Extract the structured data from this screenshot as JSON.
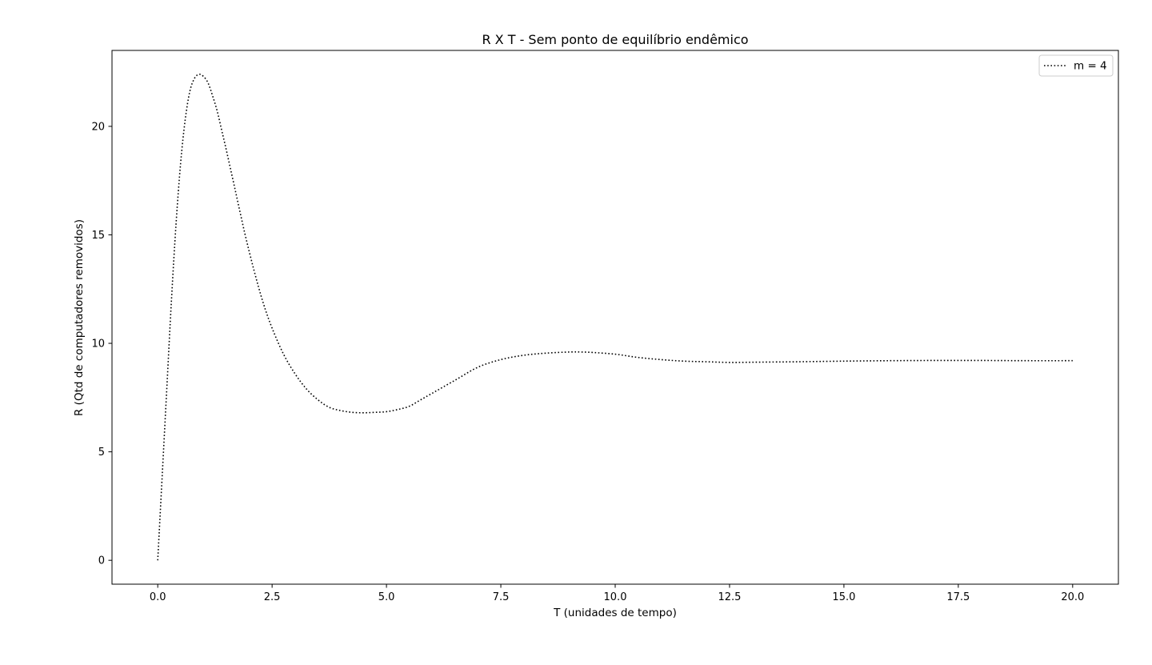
{
  "chart_data": {
    "type": "line",
    "title": "R X T - Sem ponto de equilíbrio endêmico",
    "xlabel": "T (unidades de tempo)",
    "ylabel": "R (Qtd de computadores removidos)",
    "xlim": [
      -1.0,
      21.0
    ],
    "ylim": [
      -1.1,
      23.5
    ],
    "xticks": [
      0.0,
      2.5,
      5.0,
      7.5,
      10.0,
      12.5,
      15.0,
      17.5,
      20.0
    ],
    "xtick_labels": [
      "0.0",
      "2.5",
      "5.0",
      "7.5",
      "10.0",
      "12.5",
      "15.0",
      "17.5",
      "20.0"
    ],
    "yticks": [
      0,
      5,
      10,
      15,
      20
    ],
    "ytick_labels": [
      "0",
      "5",
      "10",
      "15",
      "20"
    ],
    "grid": false,
    "legend_position": "top-right",
    "series": [
      {
        "name": "m = 4",
        "color": "#000000",
        "line_style": "dotted",
        "x": [
          0.0,
          0.1,
          0.2,
          0.3,
          0.4,
          0.5,
          0.6,
          0.7,
          0.8,
          0.9,
          1.0,
          1.1,
          1.2,
          1.3,
          1.4,
          1.5,
          1.7,
          1.9,
          2.1,
          2.3,
          2.5,
          2.75,
          3.0,
          3.25,
          3.5,
          3.75,
          4.0,
          4.25,
          4.5,
          4.75,
          5.0,
          5.25,
          5.5,
          5.75,
          6.0,
          6.5,
          7.0,
          7.5,
          8.0,
          8.5,
          9.0,
          9.25,
          9.5,
          10.0,
          10.5,
          11.0,
          11.5,
          12.0,
          12.5,
          13.0,
          13.5,
          14.0,
          15.0,
          16.0,
          17.0,
          18.0,
          19.0,
          20.0
        ],
        "y": [
          0.0,
          4.0,
          8.0,
          12.0,
          15.5,
          18.3,
          20.3,
          21.6,
          22.2,
          22.4,
          22.3,
          22.0,
          21.4,
          20.7,
          19.8,
          18.9,
          17.0,
          15.1,
          13.4,
          11.9,
          10.7,
          9.5,
          8.6,
          7.9,
          7.4,
          7.05,
          6.9,
          6.82,
          6.8,
          6.82,
          6.85,
          6.95,
          7.1,
          7.4,
          7.7,
          8.3,
          8.9,
          9.25,
          9.45,
          9.55,
          9.6,
          9.6,
          9.58,
          9.5,
          9.35,
          9.25,
          9.18,
          9.15,
          9.12,
          9.13,
          9.14,
          9.15,
          9.18,
          9.2,
          9.21,
          9.21,
          9.2,
          9.2
        ]
      }
    ]
  }
}
